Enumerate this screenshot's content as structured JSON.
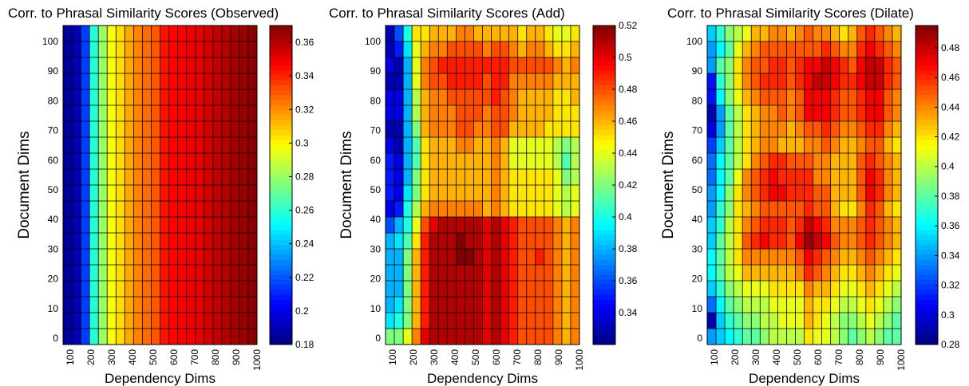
{
  "chart_data": [
    {
      "type": "heatmap",
      "title": "Corr. to Phrasal Similarity Scores (Observed)",
      "xlabel": "Dependency Dims",
      "ylabel": "Document Dims",
      "x_ticks": [
        "100",
        "200",
        "300",
        "400",
        "500",
        "600",
        "700",
        "800",
        "900",
        "1000"
      ],
      "y_ticks": [
        "0",
        "10",
        "20",
        "30",
        "40",
        "50",
        "60",
        "70",
        "80",
        "90",
        "100"
      ],
      "colorbar": {
        "min": 0.18,
        "max": 0.37,
        "ticks": [
          "0.18",
          "0.2",
          "0.22",
          "0.24",
          "0.26",
          "0.28",
          "0.3",
          "0.32",
          "0.34",
          "0.36"
        ]
      },
      "colormap": "jet",
      "column_values": [
        0.185,
        0.19,
        0.215,
        0.258,
        0.28,
        0.298,
        0.305,
        0.315,
        0.322,
        0.326,
        0.33,
        0.343,
        0.346,
        0.347,
        0.349,
        0.351,
        0.354,
        0.357,
        0.36,
        0.363,
        0.365,
        0.368
      ],
      "note": "values vary along columns only"
    },
    {
      "type": "heatmap",
      "title": "Corr. to Phrasal Similarity Scores (Add)",
      "xlabel": "Dependency Dims",
      "ylabel": "Document Dims",
      "x_ticks": [
        "100",
        "200",
        "300",
        "400",
        "500",
        "600",
        "700",
        "800",
        "900",
        "1000"
      ],
      "y_ticks": [
        "0",
        "10",
        "20",
        "30",
        "40",
        "50",
        "60",
        "70",
        "80",
        "90",
        "100"
      ],
      "colorbar": {
        "min": 0.32,
        "max": 0.52,
        "ticks": [
          "0.34",
          "0.36",
          "0.38",
          "0.4",
          "0.42",
          "0.44",
          "0.46",
          "0.48",
          "0.5",
          "0.52"
        ]
      },
      "colormap": "jet",
      "matrix_top_to_bottom": [
        [
          0.33,
          0.36,
          0.4,
          0.45,
          0.45,
          0.46,
          0.46,
          0.46,
          0.47,
          0.47,
          0.46,
          0.46,
          0.46,
          0.46,
          0.46,
          0.45,
          0.46,
          0.46,
          0.45,
          0.44,
          0.44,
          0.45
        ],
        [
          0.33,
          0.35,
          0.39,
          0.44,
          0.46,
          0.47,
          0.47,
          0.48,
          0.48,
          0.48,
          0.48,
          0.47,
          0.48,
          0.48,
          0.47,
          0.46,
          0.47,
          0.47,
          0.46,
          0.45,
          0.45,
          0.46
        ],
        [
          0.34,
          0.33,
          0.38,
          0.44,
          0.47,
          0.48,
          0.49,
          0.49,
          0.49,
          0.49,
          0.49,
          0.49,
          0.49,
          0.49,
          0.48,
          0.48,
          0.48,
          0.48,
          0.48,
          0.47,
          0.46,
          0.47
        ],
        [
          0.33,
          0.33,
          0.38,
          0.44,
          0.47,
          0.48,
          0.48,
          0.49,
          0.49,
          0.49,
          0.49,
          0.48,
          0.49,
          0.49,
          0.47,
          0.47,
          0.47,
          0.47,
          0.47,
          0.46,
          0.46,
          0.46
        ],
        [
          0.34,
          0.34,
          0.38,
          0.43,
          0.46,
          0.47,
          0.47,
          0.48,
          0.48,
          0.48,
          0.48,
          0.48,
          0.49,
          0.48,
          0.47,
          0.46,
          0.46,
          0.46,
          0.46,
          0.45,
          0.45,
          0.46
        ],
        [
          0.34,
          0.34,
          0.38,
          0.43,
          0.46,
          0.47,
          0.47,
          0.47,
          0.48,
          0.48,
          0.48,
          0.47,
          0.48,
          0.48,
          0.47,
          0.46,
          0.46,
          0.46,
          0.46,
          0.45,
          0.45,
          0.45
        ],
        [
          0.33,
          0.33,
          0.38,
          0.42,
          0.46,
          0.47,
          0.47,
          0.47,
          0.48,
          0.48,
          0.47,
          0.47,
          0.48,
          0.48,
          0.46,
          0.46,
          0.46,
          0.46,
          0.45,
          0.45,
          0.45,
          0.45
        ],
        [
          0.34,
          0.33,
          0.38,
          0.41,
          0.45,
          0.46,
          0.46,
          0.46,
          0.47,
          0.47,
          0.46,
          0.46,
          0.47,
          0.46,
          0.44,
          0.44,
          0.44,
          0.44,
          0.44,
          0.43,
          0.42,
          0.43
        ],
        [
          0.35,
          0.34,
          0.38,
          0.41,
          0.45,
          0.46,
          0.46,
          0.46,
          0.46,
          0.46,
          0.46,
          0.46,
          0.47,
          0.46,
          0.44,
          0.44,
          0.44,
          0.44,
          0.44,
          0.43,
          0.41,
          0.43
        ],
        [
          0.35,
          0.34,
          0.38,
          0.42,
          0.45,
          0.46,
          0.46,
          0.46,
          0.46,
          0.46,
          0.46,
          0.46,
          0.47,
          0.46,
          0.45,
          0.45,
          0.45,
          0.45,
          0.45,
          0.44,
          0.42,
          0.43
        ],
        [
          0.35,
          0.34,
          0.39,
          0.42,
          0.45,
          0.46,
          0.46,
          0.46,
          0.46,
          0.46,
          0.46,
          0.46,
          0.47,
          0.46,
          0.45,
          0.45,
          0.45,
          0.45,
          0.45,
          0.44,
          0.43,
          0.44
        ],
        [
          0.34,
          0.35,
          0.4,
          0.43,
          0.46,
          0.47,
          0.47,
          0.47,
          0.47,
          0.47,
          0.47,
          0.46,
          0.47,
          0.46,
          0.45,
          0.45,
          0.45,
          0.45,
          0.45,
          0.44,
          0.43,
          0.44
        ],
        [
          0.36,
          0.38,
          0.4,
          0.44,
          0.48,
          0.5,
          0.51,
          0.51,
          0.51,
          0.51,
          0.51,
          0.5,
          0.51,
          0.5,
          0.49,
          0.48,
          0.48,
          0.48,
          0.48,
          0.47,
          0.46,
          0.47
        ],
        [
          0.38,
          0.39,
          0.41,
          0.45,
          0.49,
          0.51,
          0.51,
          0.51,
          0.52,
          0.51,
          0.51,
          0.5,
          0.51,
          0.5,
          0.49,
          0.48,
          0.48,
          0.48,
          0.48,
          0.47,
          0.46,
          0.47
        ],
        [
          0.38,
          0.38,
          0.42,
          0.46,
          0.49,
          0.51,
          0.51,
          0.51,
          0.52,
          0.52,
          0.51,
          0.5,
          0.51,
          0.5,
          0.49,
          0.48,
          0.48,
          0.49,
          0.48,
          0.47,
          0.46,
          0.47
        ],
        [
          0.38,
          0.38,
          0.42,
          0.46,
          0.49,
          0.51,
          0.51,
          0.51,
          0.51,
          0.51,
          0.51,
          0.5,
          0.51,
          0.5,
          0.49,
          0.48,
          0.48,
          0.48,
          0.48,
          0.47,
          0.46,
          0.47
        ],
        [
          0.38,
          0.38,
          0.42,
          0.46,
          0.49,
          0.51,
          0.51,
          0.51,
          0.51,
          0.51,
          0.51,
          0.5,
          0.51,
          0.5,
          0.49,
          0.48,
          0.48,
          0.48,
          0.48,
          0.47,
          0.46,
          0.47
        ],
        [
          0.38,
          0.39,
          0.42,
          0.46,
          0.49,
          0.51,
          0.51,
          0.51,
          0.51,
          0.51,
          0.51,
          0.5,
          0.51,
          0.5,
          0.49,
          0.48,
          0.48,
          0.48,
          0.48,
          0.47,
          0.46,
          0.47
        ],
        [
          0.39,
          0.4,
          0.42,
          0.46,
          0.49,
          0.51,
          0.51,
          0.51,
          0.51,
          0.51,
          0.51,
          0.5,
          0.51,
          0.5,
          0.49,
          0.48,
          0.48,
          0.48,
          0.48,
          0.47,
          0.46,
          0.47
        ],
        [
          0.42,
          0.42,
          0.44,
          0.47,
          0.5,
          0.51,
          0.51,
          0.51,
          0.51,
          0.51,
          0.51,
          0.5,
          0.51,
          0.5,
          0.49,
          0.48,
          0.48,
          0.48,
          0.48,
          0.47,
          0.46,
          0.47
        ]
      ]
    },
    {
      "type": "heatmap",
      "title": "Corr. to Phrasal Similarity Scores (Dilate)",
      "xlabel": "Dependency Dims",
      "ylabel": "Document Dims",
      "x_ticks": [
        "100",
        "200",
        "300",
        "400",
        "500",
        "600",
        "700",
        "800",
        "900",
        "1000"
      ],
      "y_ticks": [
        "0",
        "10",
        "20",
        "30",
        "40",
        "50",
        "60",
        "70",
        "80",
        "90",
        "100"
      ],
      "colorbar": {
        "min": 0.28,
        "max": 0.495,
        "ticks": [
          "0.28",
          "0.3",
          "0.32",
          "0.34",
          "0.36",
          "0.38",
          "0.4",
          "0.42",
          "0.44",
          "0.46",
          "0.48"
        ]
      },
      "colormap": "jet",
      "matrix_top_to_bottom": [
        [
          0.35,
          0.37,
          0.39,
          0.4,
          0.41,
          0.43,
          0.43,
          0.44,
          0.44,
          0.43,
          0.44,
          0.45,
          0.44,
          0.44,
          0.43,
          0.42,
          0.43,
          0.45,
          0.46,
          0.45,
          0.44,
          0.43
        ],
        [
          0.34,
          0.36,
          0.38,
          0.41,
          0.43,
          0.44,
          0.45,
          0.45,
          0.45,
          0.45,
          0.45,
          0.45,
          0.45,
          0.46,
          0.45,
          0.44,
          0.44,
          0.46,
          0.47,
          0.46,
          0.45,
          0.44
        ],
        [
          0.34,
          0.38,
          0.39,
          0.42,
          0.44,
          0.45,
          0.45,
          0.46,
          0.46,
          0.45,
          0.46,
          0.47,
          0.47,
          0.48,
          0.47,
          0.46,
          0.45,
          0.47,
          0.48,
          0.48,
          0.46,
          0.45
        ],
        [
          0.31,
          0.37,
          0.39,
          0.42,
          0.44,
          0.45,
          0.46,
          0.46,
          0.46,
          0.45,
          0.46,
          0.47,
          0.48,
          0.48,
          0.47,
          0.46,
          0.46,
          0.47,
          0.48,
          0.48,
          0.46,
          0.45
        ],
        [
          0.31,
          0.36,
          0.39,
          0.41,
          0.43,
          0.44,
          0.45,
          0.45,
          0.45,
          0.44,
          0.45,
          0.47,
          0.47,
          0.47,
          0.46,
          0.45,
          0.45,
          0.46,
          0.47,
          0.47,
          0.45,
          0.44
        ],
        [
          0.29,
          0.34,
          0.38,
          0.4,
          0.42,
          0.43,
          0.44,
          0.44,
          0.45,
          0.44,
          0.45,
          0.47,
          0.47,
          0.47,
          0.46,
          0.45,
          0.45,
          0.46,
          0.47,
          0.47,
          0.45,
          0.44
        ],
        [
          0.3,
          0.34,
          0.38,
          0.4,
          0.42,
          0.43,
          0.44,
          0.44,
          0.44,
          0.43,
          0.44,
          0.45,
          0.45,
          0.46,
          0.45,
          0.44,
          0.44,
          0.45,
          0.46,
          0.46,
          0.44,
          0.43
        ],
        [
          0.32,
          0.35,
          0.38,
          0.4,
          0.42,
          0.43,
          0.44,
          0.44,
          0.43,
          0.43,
          0.43,
          0.44,
          0.44,
          0.45,
          0.44,
          0.43,
          0.43,
          0.44,
          0.45,
          0.45,
          0.43,
          0.42
        ],
        [
          0.33,
          0.36,
          0.38,
          0.4,
          0.42,
          0.44,
          0.45,
          0.46,
          0.46,
          0.45,
          0.45,
          0.45,
          0.44,
          0.44,
          0.43,
          0.43,
          0.43,
          0.45,
          0.46,
          0.45,
          0.44,
          0.43
        ],
        [
          0.33,
          0.36,
          0.38,
          0.41,
          0.44,
          0.45,
          0.46,
          0.47,
          0.46,
          0.46,
          0.46,
          0.46,
          0.44,
          0.44,
          0.43,
          0.43,
          0.43,
          0.45,
          0.47,
          0.46,
          0.44,
          0.43
        ],
        [
          0.34,
          0.36,
          0.39,
          0.42,
          0.44,
          0.45,
          0.46,
          0.47,
          0.47,
          0.46,
          0.46,
          0.46,
          0.45,
          0.45,
          0.43,
          0.43,
          0.43,
          0.45,
          0.47,
          0.46,
          0.44,
          0.43
        ],
        [
          0.34,
          0.37,
          0.39,
          0.42,
          0.43,
          0.44,
          0.45,
          0.45,
          0.45,
          0.45,
          0.45,
          0.46,
          0.45,
          0.45,
          0.43,
          0.42,
          0.42,
          0.44,
          0.46,
          0.45,
          0.43,
          0.42
        ],
        [
          0.35,
          0.37,
          0.4,
          0.42,
          0.44,
          0.45,
          0.46,
          0.46,
          0.46,
          0.45,
          0.46,
          0.48,
          0.47,
          0.46,
          0.44,
          0.44,
          0.44,
          0.45,
          0.46,
          0.45,
          0.44,
          0.43
        ],
        [
          0.35,
          0.38,
          0.4,
          0.42,
          0.45,
          0.46,
          0.47,
          0.46,
          0.46,
          0.45,
          0.47,
          0.49,
          0.48,
          0.47,
          0.45,
          0.44,
          0.44,
          0.45,
          0.46,
          0.45,
          0.44,
          0.43
        ],
        [
          0.36,
          0.38,
          0.4,
          0.42,
          0.44,
          0.44,
          0.44,
          0.44,
          0.44,
          0.44,
          0.45,
          0.47,
          0.46,
          0.45,
          0.44,
          0.43,
          0.43,
          0.44,
          0.45,
          0.44,
          0.43,
          0.42
        ],
        [
          0.36,
          0.38,
          0.4,
          0.41,
          0.43,
          0.43,
          0.43,
          0.43,
          0.43,
          0.43,
          0.44,
          0.46,
          0.45,
          0.44,
          0.43,
          0.42,
          0.42,
          0.43,
          0.44,
          0.43,
          0.42,
          0.41
        ],
        [
          0.35,
          0.37,
          0.39,
          0.4,
          0.41,
          0.41,
          0.41,
          0.42,
          0.42,
          0.42,
          0.42,
          0.44,
          0.43,
          0.43,
          0.42,
          0.41,
          0.41,
          0.42,
          0.43,
          0.42,
          0.41,
          0.4
        ],
        [
          0.33,
          0.36,
          0.38,
          0.39,
          0.4,
          0.4,
          0.4,
          0.41,
          0.41,
          0.41,
          0.41,
          0.43,
          0.42,
          0.42,
          0.41,
          0.4,
          0.4,
          0.41,
          0.42,
          0.41,
          0.4,
          0.39
        ],
        [
          0.29,
          0.35,
          0.37,
          0.38,
          0.39,
          0.39,
          0.4,
          0.4,
          0.41,
          0.41,
          0.41,
          0.43,
          0.42,
          0.41,
          0.4,
          0.39,
          0.39,
          0.4,
          0.41,
          0.4,
          0.39,
          0.38
        ],
        [
          0.34,
          0.35,
          0.36,
          0.37,
          0.38,
          0.38,
          0.39,
          0.4,
          0.4,
          0.4,
          0.4,
          0.42,
          0.41,
          0.41,
          0.4,
          0.39,
          0.38,
          0.39,
          0.4,
          0.39,
          0.38,
          0.38
        ]
      ]
    }
  ]
}
